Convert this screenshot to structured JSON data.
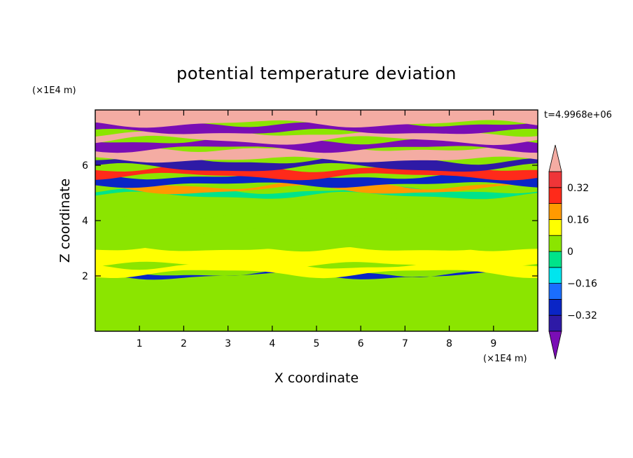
{
  "chart_data": {
    "type": "heatmap",
    "title": "potential temperature deviation",
    "xlabel": "X coordinate",
    "ylabel": "Z coordinate",
    "x_unit": "(×1E4 m)",
    "z_unit": "(×1E4 m)",
    "time_label": "t=4.9968e+06",
    "xlim": [
      0,
      10
    ],
    "zlim": [
      0,
      8
    ],
    "x_ticks": [
      "1",
      "2",
      "3",
      "4",
      "5",
      "6",
      "7",
      "8",
      "9"
    ],
    "z_ticks": [
      "2",
      "4",
      "6"
    ],
    "colorbar": {
      "tick_labels": [
        "0.32",
        "0.16",
        "0",
        "−0.16",
        "−0.32"
      ],
      "levels": [
        -0.4,
        -0.32,
        -0.24,
        -0.16,
        -0.08,
        0,
        0.08,
        0.16,
        0.24,
        0.32,
        0.4
      ],
      "colors": [
        "#7a0db5",
        "#2e1aa6",
        "#0a25c6",
        "#1a6eff",
        "#00e5ee",
        "#00e38a",
        "#8be500",
        "#ffff00",
        "#ff9a00",
        "#ff2a1a",
        "#ef3538",
        "#f4aca3"
      ],
      "extend": "both"
    },
    "layers": [
      {
        "z_bottom": 0.0,
        "z_top": 2.0,
        "value": 0.02
      },
      {
        "z_bottom": 2.0,
        "z_top": 2.1,
        "value": -0.3
      },
      {
        "z_bottom": 2.1,
        "z_top": 2.4,
        "value": 0.12
      },
      {
        "z_bottom": 2.4,
        "z_top": 3.0,
        "value": 0.08
      },
      {
        "z_bottom": 3.0,
        "z_top": 3.6,
        "value": 0.05
      },
      {
        "z_bottom": 3.6,
        "z_top": 4.2,
        "value": 0.04
      },
      {
        "z_bottom": 4.2,
        "z_top": 4.9,
        "value": 0.06
      },
      {
        "z_bottom": 4.9,
        "z_top": 5.1,
        "value": -0.05
      },
      {
        "z_bottom": 5.1,
        "z_top": 5.3,
        "value": 0.2
      },
      {
        "z_bottom": 5.3,
        "z_top": 5.6,
        "value": -0.3
      },
      {
        "z_bottom": 5.6,
        "z_top": 5.9,
        "value": 0.3
      },
      {
        "z_bottom": 5.9,
        "z_top": 6.2,
        "value": -0.36
      },
      {
        "z_bottom": 6.2,
        "z_top": 6.6,
        "value": 0.42
      },
      {
        "z_bottom": 6.6,
        "z_top": 6.9,
        "value": -0.42
      },
      {
        "z_bottom": 6.9,
        "z_top": 7.2,
        "value": 0.42
      },
      {
        "z_bottom": 7.2,
        "z_top": 7.5,
        "value": -0.42
      },
      {
        "z_bottom": 7.5,
        "z_top": 8.0,
        "value": 0.42
      }
    ],
    "grid": false,
    "legend": "right colorbar"
  }
}
